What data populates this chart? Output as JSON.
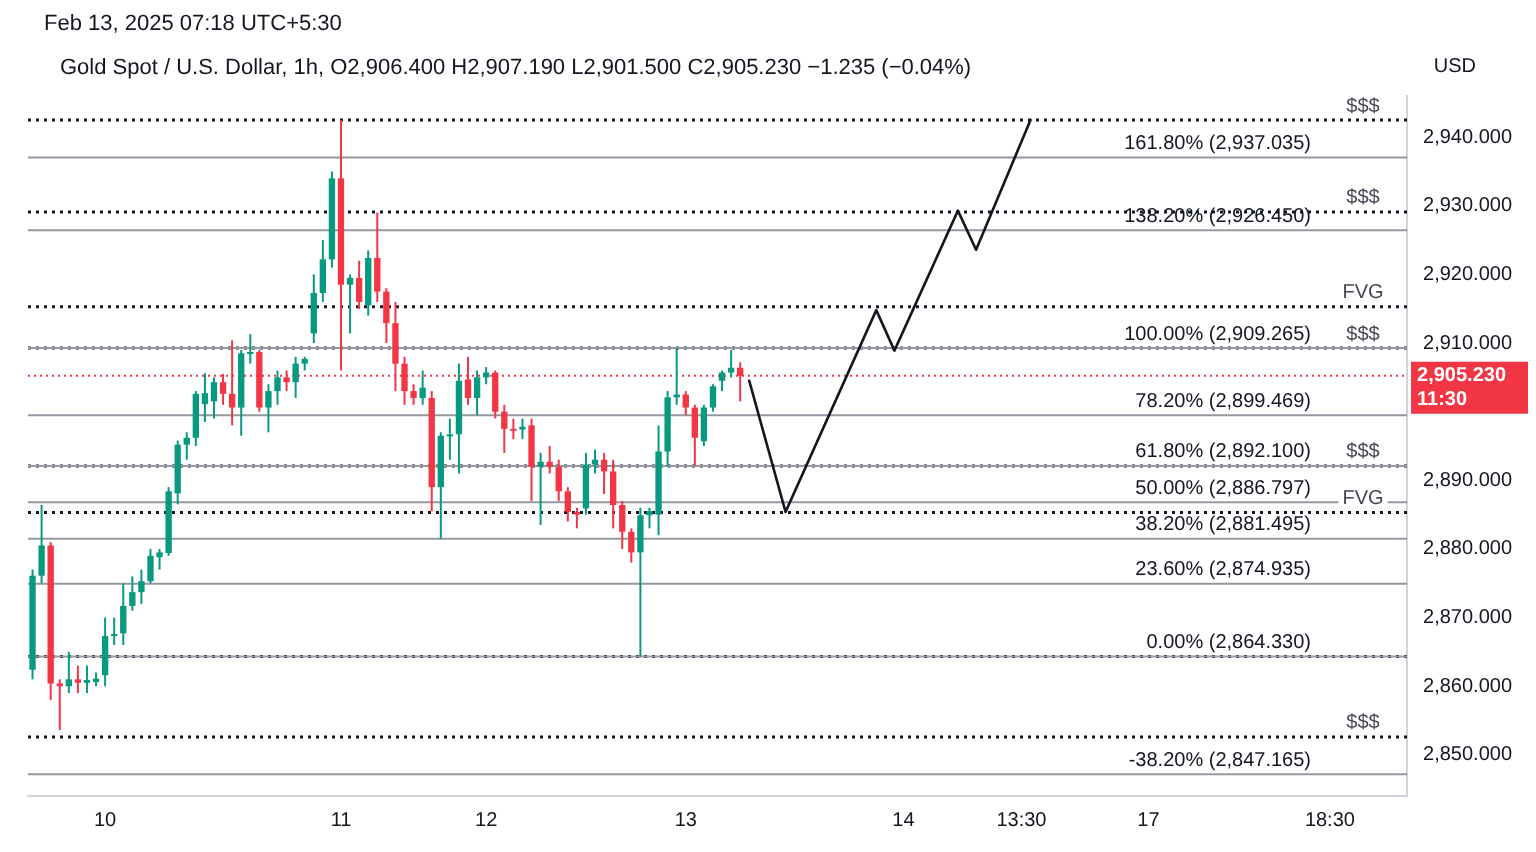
{
  "chart_data": {
    "type": "candlestick",
    "title": "Gold Spot / U.S. Dollar, 1h, O2,906.400 H2,907.190 L2,901.500 C2,905.230 −1.235 (−0.04%)",
    "ylabel": "USD",
    "annotations": [
      "Feb 13, 2025 07:18 UTC+5:30",
      "11:30"
    ],
    "categories": [
      null,
      null,
      null,
      null,
      null,
      null,
      null,
      null,
      "10",
      null,
      null,
      null,
      null,
      null,
      null,
      null,
      null,
      null,
      null,
      null,
      null,
      null,
      null,
      null,
      null,
      null,
      null,
      null,
      null,
      null,
      null,
      null,
      null,
      null,
      "11",
      null,
      null,
      null,
      null,
      null,
      null,
      null,
      null,
      null,
      null,
      null,
      null,
      null,
      null,
      null,
      "12",
      null,
      null,
      null,
      null,
      null,
      null,
      null,
      null,
      null,
      null,
      null,
      null,
      null,
      null,
      null,
      null,
      null,
      null,
      null,
      null,
      null,
      "13",
      null,
      null,
      null,
      null,
      null,
      null,
      null,
      null,
      null,
      null,
      null,
      null,
      null,
      null,
      null,
      null,
      null,
      null,
      null,
      null,
      null,
      null,
      null,
      "14",
      null,
      null,
      null,
      null,
      null,
      null,
      null,
      null,
      null,
      null,
      null,
      null,
      "13:30",
      null,
      null,
      null,
      null,
      null,
      null,
      null,
      null,
      null,
      null,
      null,
      null,
      null,
      "17",
      null,
      null,
      null,
      null,
      null,
      null,
      null,
      null,
      null,
      null,
      null,
      null,
      null,
      null,
      null,
      null,
      null,
      null,
      null,
      "18:30",
      null,
      null,
      null,
      null,
      null,
      null,
      null,
      null
    ],
    "ohlc": [
      [
        2862.4,
        2877,
        2861,
        2876.1
      ],
      [
        2876.1,
        2886.4,
        2875,
        2880.5
      ],
      [
        2880.5,
        2881,
        2858,
        2860.4
      ],
      [
        2860.4,
        2861,
        2853.6,
        2860
      ],
      [
        2860,
        2865,
        2859,
        2861
      ],
      [
        2861,
        2863,
        2859,
        2860.5
      ],
      [
        2860.5,
        2863,
        2859,
        2860.9
      ],
      [
        2860.6,
        2862,
        2860,
        2861.1
      ],
      [
        2861.6,
        2870,
        2860,
        2867.3
      ],
      [
        2867.3,
        2870,
        2866,
        2867.6
      ],
      [
        2867.7,
        2875,
        2866,
        2871.7
      ],
      [
        2871.7,
        2876,
        2871,
        2873.7
      ],
      [
        2873.7,
        2877,
        2872,
        2875.3
      ],
      [
        2875.3,
        2880,
        2875,
        2879
      ],
      [
        2878.8,
        2880,
        2877,
        2879.5
      ],
      [
        2879.4,
        2889,
        2879,
        2888.4
      ],
      [
        2888.1,
        2895.8,
        2886.5,
        2895.2
      ],
      [
        2895.2,
        2897,
        2893,
        2896.2
      ],
      [
        2896.2,
        2903,
        2895,
        2902.6
      ],
      [
        2901.1,
        2905.6,
        2898.5,
        2902.7
      ],
      [
        2901.5,
        2905,
        2899,
        2904.3
      ],
      [
        2904.3,
        2905.5,
        2901,
        2902.6
      ],
      [
        2902.6,
        2910.4,
        2898,
        2900.6
      ],
      [
        2900.6,
        2909,
        2896.5,
        2908.5
      ],
      [
        2908.5,
        2911.3,
        2907,
        2908.7
      ],
      [
        2908.7,
        2909,
        2900,
        2900.6
      ],
      [
        2900.6,
        2904,
        2897,
        2903
      ],
      [
        2903,
        2906,
        2901,
        2905
      ],
      [
        2905,
        2906,
        2903,
        2904.3
      ],
      [
        2904.3,
        2908,
        2902,
        2907
      ],
      [
        2907,
        2908,
        2906,
        2907.7
      ],
      [
        2911.4,
        2920,
        2910,
        2917.3
      ],
      [
        2917.3,
        2925,
        2916,
        2922.2
      ],
      [
        2922.2,
        2935,
        2921,
        2934
      ],
      [
        2934,
        2942.5,
        2906,
        2918.5
      ],
      [
        2918.5,
        2920,
        2911.4,
        2919.5
      ],
      [
        2919.5,
        2922,
        2915,
        2916
      ],
      [
        2915.5,
        2923.5,
        2914,
        2922.4
      ],
      [
        2922.4,
        2929,
        2916,
        2917.5
      ],
      [
        2917.5,
        2918,
        2910,
        2912.9
      ],
      [
        2912.9,
        2916,
        2903,
        2907
      ],
      [
        2907,
        2908,
        2901,
        2903
      ],
      [
        2903,
        2904,
        2901,
        2902
      ],
      [
        2902,
        2906,
        2901,
        2903.5
      ],
      [
        2902,
        2903,
        2885.5,
        2889
      ],
      [
        2889,
        2897,
        2881.5,
        2896.5
      ],
      [
        2896.5,
        2899,
        2893,
        2896.7
      ],
      [
        2896.7,
        2907,
        2891,
        2904.5
      ],
      [
        2904.7,
        2908,
        2901,
        2902
      ],
      [
        2902,
        2906,
        2899.5,
        2905
      ],
      [
        2905,
        2906.5,
        2904,
        2905.7
      ],
      [
        2905.7,
        2906,
        2899,
        2900
      ],
      [
        2900,
        2901,
        2894,
        2897.5
      ],
      [
        2897.5,
        2899,
        2896,
        2897.3
      ],
      [
        2897.4,
        2899,
        2896,
        2897.8
      ],
      [
        2898,
        2899,
        2887,
        2892
      ],
      [
        2892,
        2894,
        2883.5,
        2892.7
      ],
      [
        2892.7,
        2895,
        2891,
        2892
      ],
      [
        2892,
        2893,
        2887,
        2888.4
      ],
      [
        2888.4,
        2889,
        2884,
        2885.4
      ],
      [
        2885.4,
        2886,
        2883,
        2885
      ],
      [
        2885.9,
        2894,
        2885,
        2892.3
      ],
      [
        2892.3,
        2894.5,
        2891,
        2893
      ],
      [
        2893,
        2894,
        2888,
        2891.3
      ],
      [
        2891.3,
        2893,
        2883,
        2886.4
      ],
      [
        2886.4,
        2887,
        2880,
        2882.5
      ],
      [
        2882.5,
        2883,
        2878,
        2879.5
      ],
      [
        2879.5,
        2886,
        2864.33,
        2884.9
      ],
      [
        2884.9,
        2886,
        2883,
        2885.5
      ],
      [
        2885,
        2898,
        2882,
        2894.2
      ],
      [
        2894.2,
        2903,
        2892,
        2902.1
      ],
      [
        2902.1,
        2909.265,
        2901,
        2902.5
      ],
      [
        2902.5,
        2903,
        2899.5,
        2900.6
      ],
      [
        2900.6,
        2901,
        2892.1,
        2896.2
      ],
      [
        2895.7,
        2901,
        2895,
        2900.6
      ],
      [
        2900.6,
        2904,
        2900,
        2903.7
      ],
      [
        2904.5,
        2906,
        2903,
        2905.7
      ],
      [
        2905.7,
        2909,
        2905,
        2906.4
      ],
      [
        2906.4,
        2907.19,
        2901.5,
        2905.23
      ],
      null,
      null,
      null,
      null,
      null,
      null,
      null,
      null,
      null,
      null,
      null,
      null,
      null,
      null,
      null,
      null,
      null,
      null,
      null,
      null,
      null,
      null,
      null,
      null,
      null,
      null,
      null,
      null,
      null,
      null,
      null,
      null,
      null,
      null,
      null,
      null,
      null,
      null,
      null,
      null,
      null,
      null,
      null,
      null,
      null,
      null,
      null,
      null,
      null,
      null,
      null,
      null,
      null,
      null,
      null,
      null,
      null,
      null,
      null,
      null,
      null,
      null,
      null,
      null,
      null,
      null,
      null,
      null,
      null,
      null,
      null,
      null,
      null
    ],
    "colors": [
      "#089981",
      "#089981",
      "#f23645",
      "#f23645",
      "#089981",
      "#f23645",
      "#089981",
      "#089981",
      "#089981",
      "#089981",
      "#089981",
      "#089981",
      "#089981",
      "#089981",
      "#089981",
      "#089981",
      "#089981",
      "#089981",
      "#089981",
      "#089981",
      "#089981",
      "#f23645",
      "#f23645",
      "#089981",
      "#089981",
      "#f23645",
      "#089981",
      "#089981",
      "#f23645",
      "#089981",
      "#089981",
      "#089981",
      "#089981",
      "#089981",
      "#f23645",
      "#089981",
      "#f23645",
      "#089981",
      "#f23645",
      "#f23645",
      "#f23645",
      "#f23645",
      "#f23645",
      "#089981",
      "#f23645",
      "#089981",
      "#089981",
      "#089981",
      "#f23645",
      "#089981",
      "#089981",
      "#f23645",
      "#f23645",
      "#f23645",
      "#089981",
      "#f23645",
      "#089981",
      "#f23645",
      "#f23645",
      "#f23645",
      "#f23645",
      "#089981",
      "#089981",
      "#f23645",
      "#f23645",
      "#f23645",
      "#f23645",
      "#089981",
      "#089981",
      "#089981",
      "#089981",
      "#089981",
      "#f23645",
      "#f23645",
      "#089981",
      "#089981",
      "#089981",
      "#089981",
      "#f23645",
      null,
      null,
      null,
      null,
      null,
      null,
      null,
      null,
      null,
      null,
      null,
      null,
      null,
      null,
      null,
      null,
      null,
      null,
      null,
      null,
      null,
      null,
      null,
      null,
      null,
      null,
      null,
      null,
      null,
      null,
      null,
      null,
      null,
      null,
      null,
      null,
      null,
      null,
      null,
      null,
      null,
      null,
      null,
      null,
      null,
      null,
      null,
      null,
      null,
      null,
      null,
      null,
      null,
      null,
      null,
      null,
      null,
      null,
      null,
      null,
      null,
      null,
      null,
      null,
      null,
      null,
      null,
      null,
      null,
      null,
      null,
      null,
      null
    ],
    "series": [
      {
        "type": "line",
        "color": "#131722",
        "values": [
          null,
          null,
          null,
          null,
          null,
          null,
          null,
          null,
          null,
          null,
          null,
          null,
          null,
          null,
          null,
          null,
          null,
          null,
          null,
          null,
          null,
          null,
          null,
          null,
          null,
          null,
          null,
          null,
          null,
          null,
          null,
          null,
          null,
          null,
          null,
          null,
          null,
          null,
          null,
          null,
          null,
          null,
          null,
          null,
          null,
          null,
          null,
          null,
          null,
          null,
          null,
          null,
          null,
          null,
          null,
          null,
          null,
          null,
          null,
          null,
          null,
          null,
          null,
          null,
          null,
          null,
          null,
          null,
          null,
          null,
          null,
          null,
          null,
          null,
          null,
          null,
          null,
          null,
          null,
          2904.5,
          null,
          null,
          null,
          2885.4,
          null,
          null,
          null,
          null,
          null,
          null,
          null,
          null,
          null,
          2914.8,
          null,
          2908.9,
          null,
          null,
          null,
          null,
          null,
          null,
          2929.3,
          null,
          2923.6,
          null,
          null,
          null,
          null,
          null,
          2942.5,
          null,
          null,
          null,
          null,
          null,
          null,
          null,
          null,
          null,
          null,
          null,
          null,
          null,
          null,
          null,
          null,
          null,
          null,
          null,
          null,
          null,
          null,
          null,
          null,
          null,
          null,
          null,
          null,
          null,
          null,
          null,
          null,
          null,
          null,
          null,
          null,
          null,
          null,
          null,
          null,
          null
        ]
      }
    ],
    "ylim": [
      2844,
      2946
    ],
    "yticks": [
      {
        "value": 2850,
        "label": "2,850.000"
      },
      {
        "value": 2860,
        "label": "2,860.000"
      },
      {
        "value": 2870,
        "label": "2,870.000"
      },
      {
        "value": 2880,
        "label": "2,880.000"
      },
      {
        "value": 2890,
        "label": "2,890.000"
      },
      {
        "value": 2910,
        "label": "2,910.000"
      },
      {
        "value": 2920,
        "label": "2,920.000"
      },
      {
        "value": 2930,
        "label": "2,930.000"
      },
      {
        "value": 2940,
        "label": "2,940.000"
      }
    ],
    "ref_lines": [
      {
        "axis": "y",
        "value": 2942.5,
        "label": "$$$",
        "color": "#131722",
        "line_style": "dotted"
      },
      {
        "axis": "y",
        "value": 2929.1,
        "label": "$$$",
        "color": "#131722",
        "line_style": "dotted"
      },
      {
        "axis": "y",
        "value": 2915.3,
        "label": "FVG",
        "color": "#131722",
        "line_style": "dotted"
      },
      {
        "axis": "y",
        "value": 2909.265,
        "label": "$$$",
        "color": "#131722",
        "line_style": "dotted"
      },
      {
        "axis": "y",
        "value": 2892.1,
        "label": "$$$",
        "color": "#131722",
        "line_style": "dotted"
      },
      {
        "axis": "y",
        "value": 2885.3,
        "label": "FVG",
        "color": "#131722",
        "line_style": "dotted"
      },
      {
        "axis": "y",
        "value": 2864.33,
        "color": "#131722",
        "line_style": "dotted"
      },
      {
        "axis": "y",
        "value": 2852.6,
        "label": "$$$",
        "color": "#131722",
        "line_style": "dotted"
      },
      {
        "axis": "y",
        "value": 2937.035,
        "label": "161.80% (2,937.035)",
        "color": "#9598a1",
        "line_style": "solid"
      },
      {
        "axis": "y",
        "value": 2926.45,
        "label": "138.20% (2,926.450)",
        "color": "#9598a1",
        "line_style": "solid"
      },
      {
        "axis": "y",
        "value": 2909.265,
        "label": "100.00% (2,909.265)",
        "color": "#9598a1",
        "line_style": "solid"
      },
      {
        "axis": "y",
        "value": 2899.469,
        "label": "78.20% (2,899.469)",
        "color": "#9598a1",
        "line_style": "solid"
      },
      {
        "axis": "y",
        "value": 2892.1,
        "label": "61.80% (2,892.100)",
        "color": "#9598a1",
        "line_style": "solid"
      },
      {
        "axis": "y",
        "value": 2886.797,
        "label": "50.00% (2,886.797)",
        "color": "#9598a1",
        "line_style": "solid"
      },
      {
        "axis": "y",
        "value": 2881.495,
        "label": "38.20% (2,881.495)",
        "color": "#9598a1",
        "line_style": "solid"
      },
      {
        "axis": "y",
        "value": 2874.935,
        "label": "23.60% (2,874.935)",
        "color": "#9598a1",
        "line_style": "solid"
      },
      {
        "axis": "y",
        "value": 2864.33,
        "label": "0.00% (2,864.330)",
        "color": "#9598a1",
        "line_style": "solid"
      },
      {
        "axis": "y",
        "value": 2847.165,
        "label": "-38.20% (2,847.165)",
        "color": "#9598a1",
        "line_style": "solid"
      },
      {
        "axis": "y",
        "value": 2905.23,
        "label": "2,905.230",
        "color": "#f23645",
        "line_style": "dashed"
      }
    ],
    "grid": false,
    "legend": false
  }
}
